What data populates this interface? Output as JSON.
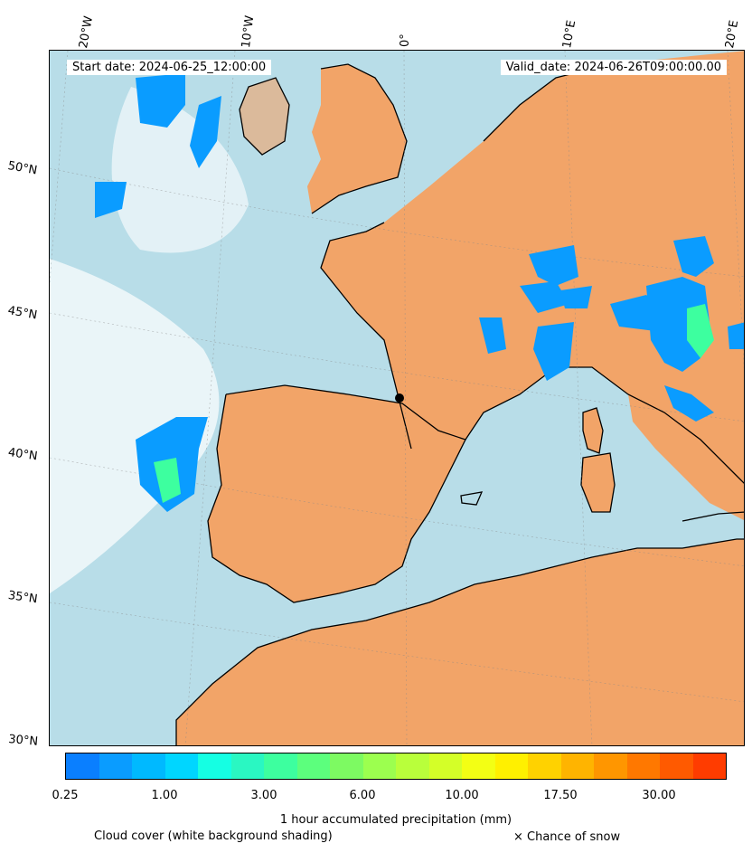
{
  "map": {
    "start_label": "Start date: 2024-06-25_12:00:00",
    "valid_label": "Valid_date: 2024-06-26T09:00:00.00",
    "lon_ticks": [
      "20°W",
      "10°W",
      "0°",
      "10°E",
      "20°E"
    ],
    "lat_ticks": [
      "50°N",
      "45°N",
      "40°N",
      "35°N",
      "30°N"
    ],
    "colors": {
      "land_dry": "#f2a468",
      "sea_cloud": "#b8dde8",
      "coastline": "#000000"
    }
  },
  "colorbar": {
    "title": "1 hour accumulated precipitation (mm)",
    "tick_labels": [
      "0.25",
      "1.00",
      "3.00",
      "6.00",
      "10.00",
      "17.50",
      "30.00"
    ],
    "colors": [
      "#0a7fff",
      "#0a9cff",
      "#00b9ff",
      "#00d6ff",
      "#15ffe3",
      "#2af7c2",
      "#3dff9f",
      "#5cff7d",
      "#7dfa62",
      "#9cff4f",
      "#b9ff3b",
      "#d4ff28",
      "#f3ff14",
      "#fff000",
      "#ffd200",
      "#ffb400",
      "#ff9600",
      "#ff7800",
      "#ff5a00",
      "#ff3c00"
    ]
  },
  "footer": {
    "cloud_note": "Cloud cover (white background shading)",
    "snow_note": "× Chance of snow"
  }
}
